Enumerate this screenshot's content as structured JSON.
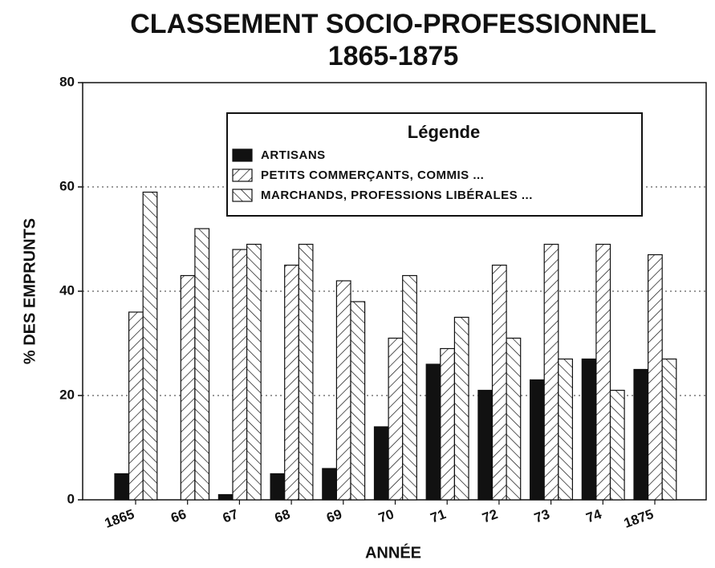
{
  "chart_data": {
    "type": "bar",
    "title": "CLASSEMENT SOCIO-PROFESSIONNEL",
    "subtitle": "1865-1875",
    "x_label": "ANNÉE",
    "y_label": "% DES EMPRUNTS",
    "legend_title": "Légende",
    "categories": [
      "1865",
      "66",
      "67",
      "68",
      "69",
      "70",
      "71",
      "72",
      "73",
      "74",
      "1875"
    ],
    "series": [
      {
        "name": "ARTISANS",
        "color": "#111111",
        "hatch": "solid",
        "values": [
          5,
          0,
          1,
          5,
          6,
          14,
          26,
          21,
          23,
          27,
          25
        ]
      },
      {
        "name": "PETITS COMMERÇANTS, COMMIS ...",
        "color": "#111111",
        "hatch": "forward",
        "values": [
          36,
          43,
          48,
          45,
          42,
          31,
          29,
          45,
          49,
          49,
          47
        ]
      },
      {
        "name": "MARCHANDS, PROFESSIONS LIBÉRALES ...",
        "color": "#111111",
        "hatch": "backward",
        "values": [
          59,
          52,
          49,
          49,
          38,
          43,
          35,
          31,
          27,
          21,
          27
        ]
      }
    ],
    "ylim": [
      0,
      80
    ],
    "yticks": [
      0,
      20,
      40,
      60,
      80
    ],
    "grid": true
  }
}
